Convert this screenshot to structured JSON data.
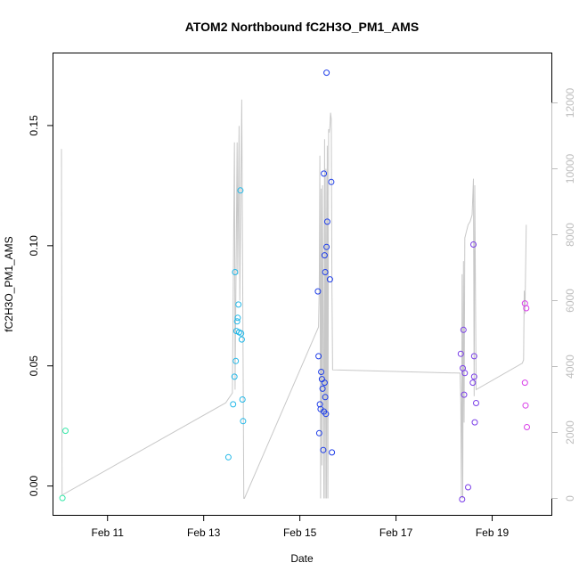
{
  "chart_data": {
    "type": "scatter",
    "title": "ATOM2 Northbound fC2H3O_PM1_AMS",
    "xlabel": "Date",
    "ylabel": "fC2H3O_PM1_AMS",
    "xlim": [
      "2017-02-09T21:00",
      "2017-02-20T06:00"
    ],
    "ylim": [
      -0.012,
      0.18
    ],
    "x_ticks": [
      {
        "value": "2017-02-11",
        "label": "Feb 11"
      },
      {
        "value": "2017-02-13",
        "label": "Feb 13"
      },
      {
        "value": "2017-02-15",
        "label": "Feb 15"
      },
      {
        "value": "2017-02-17",
        "label": "Feb 17"
      },
      {
        "value": "2017-02-19",
        "label": "Feb 19"
      }
    ],
    "y_ticks": [
      {
        "value": 0.0,
        "label": "0.00"
      },
      {
        "value": 0.05,
        "label": "0.05"
      },
      {
        "value": 0.1,
        "label": "0.10"
      },
      {
        "value": 0.15,
        "label": "0.15"
      }
    ],
    "y2lim": [
      -500,
      13500
    ],
    "y2_ticks": [
      {
        "value": 0,
        "label": "0"
      },
      {
        "value": 2000,
        "label": "2000"
      },
      {
        "value": 4000,
        "label": "4000"
      },
      {
        "value": 6000,
        "label": "6000"
      },
      {
        "value": 8000,
        "label": "8000"
      },
      {
        "value": 10000,
        "label": "10000"
      },
      {
        "value": 12000,
        "label": "12000"
      }
    ],
    "grid": false,
    "secondary_line_color": "#c8c8c8",
    "points": [
      {
        "x": "2017-02-10T01:30",
        "y": -0.005,
        "color": "#35e8a8"
      },
      {
        "x": "2017-02-10T03:00",
        "y": 0.023,
        "color": "#35e8a8"
      },
      {
        "x": "2017-02-13T12:20",
        "y": 0.012,
        "color": "#22b8e8"
      },
      {
        "x": "2017-02-13T14:40",
        "y": 0.034,
        "color": "#22b8e8"
      },
      {
        "x": "2017-02-13T15:20",
        "y": 0.0455,
        "color": "#22b8e8"
      },
      {
        "x": "2017-02-13T15:40",
        "y": 0.089,
        "color": "#22b8e8"
      },
      {
        "x": "2017-02-13T16:00",
        "y": 0.052,
        "color": "#22b8e8"
      },
      {
        "x": "2017-02-13T16:20",
        "y": 0.0645,
        "color": "#22b8e8"
      },
      {
        "x": "2017-02-13T16:40",
        "y": 0.0685,
        "color": "#22b8e8"
      },
      {
        "x": "2017-02-13T17:00",
        "y": 0.07,
        "color": "#22b8e8"
      },
      {
        "x": "2017-02-13T17:20",
        "y": 0.0755,
        "color": "#22b8e8"
      },
      {
        "x": "2017-02-13T17:40",
        "y": 0.064,
        "color": "#22b8e8"
      },
      {
        "x": "2017-02-13T18:20",
        "y": 0.123,
        "color": "#22b8e8"
      },
      {
        "x": "2017-02-13T18:40",
        "y": 0.0635,
        "color": "#22b8e8"
      },
      {
        "x": "2017-02-13T19:00",
        "y": 0.061,
        "color": "#22b8e8"
      },
      {
        "x": "2017-02-13T19:20",
        "y": 0.036,
        "color": "#22b8e8"
      },
      {
        "x": "2017-02-13T19:40",
        "y": 0.027,
        "color": "#22b8e8"
      },
      {
        "x": "2017-02-15T09:00",
        "y": 0.081,
        "color": "#1f3ee8"
      },
      {
        "x": "2017-02-15T09:20",
        "y": 0.054,
        "color": "#1f3ee8"
      },
      {
        "x": "2017-02-15T09:40",
        "y": 0.022,
        "color": "#1f3ee8"
      },
      {
        "x": "2017-02-15T10:00",
        "y": 0.034,
        "color": "#1f3ee8"
      },
      {
        "x": "2017-02-15T10:20",
        "y": 0.032,
        "color": "#1f3ee8"
      },
      {
        "x": "2017-02-15T10:40",
        "y": 0.0475,
        "color": "#1f3ee8"
      },
      {
        "x": "2017-02-15T11:00",
        "y": 0.0445,
        "color": "#1f3ee8"
      },
      {
        "x": "2017-02-15T11:20",
        "y": 0.0405,
        "color": "#1f3ee8"
      },
      {
        "x": "2017-02-15T11:40",
        "y": 0.015,
        "color": "#1f3ee8"
      },
      {
        "x": "2017-02-15T12:00",
        "y": 0.031,
        "color": "#1f3ee8"
      },
      {
        "x": "2017-02-15T12:00",
        "y": 0.13,
        "color": "#1f3ee8"
      },
      {
        "x": "2017-02-15T12:20",
        "y": 0.043,
        "color": "#1f3ee8"
      },
      {
        "x": "2017-02-15T12:20",
        "y": 0.096,
        "color": "#1f3ee8"
      },
      {
        "x": "2017-02-15T12:40",
        "y": 0.089,
        "color": "#1f3ee8"
      },
      {
        "x": "2017-02-15T12:40",
        "y": 0.037,
        "color": "#1f3ee8"
      },
      {
        "x": "2017-02-15T13:00",
        "y": 0.03,
        "color": "#1f3ee8"
      },
      {
        "x": "2017-02-15T13:20",
        "y": 0.172,
        "color": "#1f3ee8"
      },
      {
        "x": "2017-02-15T13:20",
        "y": 0.0995,
        "color": "#1f3ee8"
      },
      {
        "x": "2017-02-15T13:40",
        "y": 0.11,
        "color": "#1f3ee8"
      },
      {
        "x": "2017-02-15T15:00",
        "y": 0.086,
        "color": "#1f3ee8"
      },
      {
        "x": "2017-02-15T15:40",
        "y": 0.1265,
        "color": "#1f3ee8"
      },
      {
        "x": "2017-02-15T16:00",
        "y": 0.014,
        "color": "#1f3ee8"
      },
      {
        "x": "2017-02-18T08:20",
        "y": 0.055,
        "color": "#7a3ee8"
      },
      {
        "x": "2017-02-18T09:00",
        "y": -0.0055,
        "color": "#7a3ee8"
      },
      {
        "x": "2017-02-18T09:20",
        "y": 0.049,
        "color": "#7a3ee8"
      },
      {
        "x": "2017-02-18T09:40",
        "y": 0.065,
        "color": "#7a3ee8"
      },
      {
        "x": "2017-02-18T10:00",
        "y": 0.038,
        "color": "#7a3ee8"
      },
      {
        "x": "2017-02-18T10:20",
        "y": 0.047,
        "color": "#7a3ee8"
      },
      {
        "x": "2017-02-18T12:00",
        "y": -0.0005,
        "color": "#7a3ee8"
      },
      {
        "x": "2017-02-18T14:20",
        "y": 0.043,
        "color": "#7a3ee8"
      },
      {
        "x": "2017-02-18T14:40",
        "y": 0.1005,
        "color": "#7a3ee8"
      },
      {
        "x": "2017-02-18T15:00",
        "y": 0.054,
        "color": "#7a3ee8"
      },
      {
        "x": "2017-02-18T15:00",
        "y": 0.0455,
        "color": "#7a3ee8"
      },
      {
        "x": "2017-02-18T15:20",
        "y": 0.0265,
        "color": "#7a3ee8"
      },
      {
        "x": "2017-02-18T16:00",
        "y": 0.0345,
        "color": "#7a3ee8"
      },
      {
        "x": "2017-02-19T16:20",
        "y": 0.076,
        "color": "#d83ee8"
      },
      {
        "x": "2017-02-19T16:20",
        "y": 0.043,
        "color": "#d83ee8"
      },
      {
        "x": "2017-02-19T16:40",
        "y": 0.0335,
        "color": "#d83ee8"
      },
      {
        "x": "2017-02-19T17:00",
        "y": 0.074,
        "color": "#d83ee8"
      },
      {
        "x": "2017-02-19T17:20",
        "y": 0.0245,
        "color": "#d83ee8"
      }
    ],
    "secondary_series": {
      "axis": "right",
      "x": [
        "2017-02-10T01:00",
        "2017-02-10T01:20",
        "2017-02-13T11:00",
        "2017-02-13T14:20",
        "2017-02-13T15:20",
        "2017-02-13T15:40",
        "2017-02-13T16:40",
        "2017-02-13T17:00",
        "2017-02-13T17:40",
        "2017-02-13T18:00",
        "2017-02-13T19:00",
        "2017-02-13T20:00",
        "2017-02-13T20:20",
        "2017-02-15T09:20",
        "2017-02-15T09:40",
        "2017-02-15T10:00",
        "2017-02-15T10:20",
        "2017-02-15T10:40",
        "2017-02-15T11:00",
        "2017-02-15T11:20",
        "2017-02-15T12:00",
        "2017-02-15T12:20",
        "2017-02-15T12:40",
        "2017-02-15T13:00",
        "2017-02-15T13:20",
        "2017-02-15T13:40",
        "2017-02-15T14:00",
        "2017-02-15T14:20",
        "2017-02-15T14:40",
        "2017-02-15T15:00",
        "2017-02-15T15:20",
        "2017-02-15T15:40",
        "2017-02-15T16:00",
        "2017-02-15T16:20",
        "2017-02-18T08:00",
        "2017-02-18T08:20",
        "2017-02-18T08:40",
        "2017-02-18T09:00",
        "2017-02-18T09:20",
        "2017-02-18T09:40",
        "2017-02-18T10:00",
        "2017-02-18T10:20",
        "2017-02-18T12:00",
        "2017-02-18T13:00",
        "2017-02-18T14:00",
        "2017-02-18T14:40",
        "2017-02-18T15:00",
        "2017-02-18T15:20",
        "2017-02-18T16:00",
        "2017-02-19T15:00",
        "2017-02-19T15:40",
        "2017-02-19T16:00",
        "2017-02-19T16:20",
        "2017-02-19T17:00"
      ],
      "y": [
        10600,
        100,
        2900,
        3200,
        10800,
        3300,
        10800,
        6800,
        11300,
        6000,
        12100,
        0,
        0,
        5200,
        6400,
        10400,
        0,
        9400,
        1000,
        9500,
        0,
        10900,
        0,
        10000,
        0,
        10700,
        0,
        11200,
        11100,
        11300,
        11700,
        11500,
        6600,
        3900,
        3800,
        2900,
        0,
        6800,
        0,
        7200,
        2300,
        7900,
        8300,
        8400,
        8600,
        9700,
        3100,
        9500,
        3300,
        4100,
        4200,
        6300,
        5600,
        8300
      ]
    }
  }
}
